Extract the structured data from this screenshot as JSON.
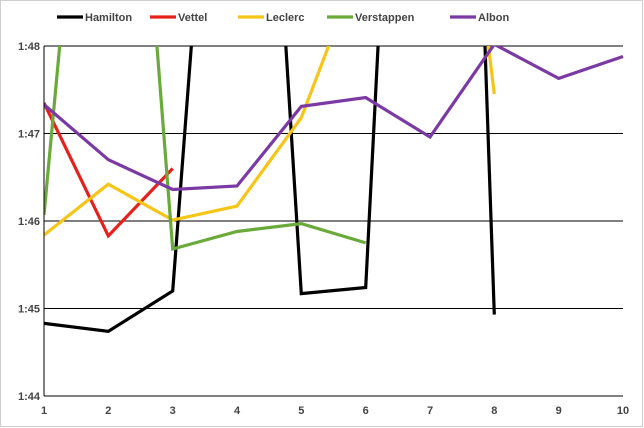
{
  "chart_data": {
    "type": "line",
    "title": "",
    "xlabel": "",
    "ylabel": "",
    "x": [
      1,
      2,
      3,
      4,
      5,
      6,
      7,
      8,
      9,
      10
    ],
    "x_ticks": [
      "1",
      "2",
      "3",
      "4",
      "5",
      "6",
      "7",
      "8",
      "9",
      "10"
    ],
    "y_ticks": [
      {
        "label": "1:44",
        "value": 104
      },
      {
        "label": "1:45",
        "value": 105
      },
      {
        "label": "1:46",
        "value": 106
      },
      {
        "label": "1:47",
        "value": 107
      },
      {
        "label": "1:48",
        "value": 108
      }
    ],
    "ylim": [
      104,
      108
    ],
    "xlim": [
      1,
      10
    ],
    "grid": "horizontal",
    "legend_position": "top",
    "y_unit_note": "values are lap times in seconds",
    "series": [
      {
        "name": "Hamilton",
        "color": "#000000",
        "values": [
          104.83,
          104.74,
          105.2,
          112.0,
          105.17,
          105.24,
          112.0,
          104.93,
          null,
          null
        ],
        "points": [
          [
            1,
            104.83
          ],
          [
            2,
            104.74
          ],
          [
            3,
            105.2
          ],
          [
            3.3,
            108.1
          ],
          [
            4.75,
            108.1
          ],
          [
            5,
            105.17
          ],
          [
            6,
            105.24
          ],
          [
            6.2,
            108.1
          ],
          [
            7.85,
            108.1
          ],
          [
            8,
            104.93
          ]
        ]
      },
      {
        "name": "Vettel",
        "color": "#e8201c",
        "points": [
          [
            1,
            107.35
          ],
          [
            2,
            105.83
          ],
          [
            3,
            106.6
          ]
        ]
      },
      {
        "name": "Leclerc",
        "color": "#f5c518",
        "points": [
          [
            1,
            105.84
          ],
          [
            2,
            106.42
          ],
          [
            3,
            106.01
          ],
          [
            4,
            106.17
          ],
          [
            5,
            107.18
          ],
          [
            5.45,
            108.05
          ]
        ],
        "points2": [
          [
            7.9,
            108.05
          ],
          [
            8,
            107.45
          ]
        ]
      },
      {
        "name": "Verstappen",
        "color": "#6aaa3a",
        "points": [
          [
            1,
            106.07
          ],
          [
            1.25,
            108.05
          ]
        ],
        "points2": [
          [
            2.75,
            108.05
          ],
          [
            3,
            105.68
          ],
          [
            4,
            105.88
          ],
          [
            5,
            105.97
          ],
          [
            6,
            105.75
          ]
        ]
      },
      {
        "name": "Albon",
        "color": "#7b3aa3",
        "points": [
          [
            1,
            107.33
          ],
          [
            2,
            106.7
          ],
          [
            3,
            106.36
          ],
          [
            4,
            106.4
          ],
          [
            5,
            107.31
          ],
          [
            6,
            107.41
          ],
          [
            7,
            106.96
          ],
          [
            8,
            108.02
          ],
          [
            9,
            107.63
          ],
          [
            10,
            107.88
          ]
        ]
      }
    ]
  }
}
